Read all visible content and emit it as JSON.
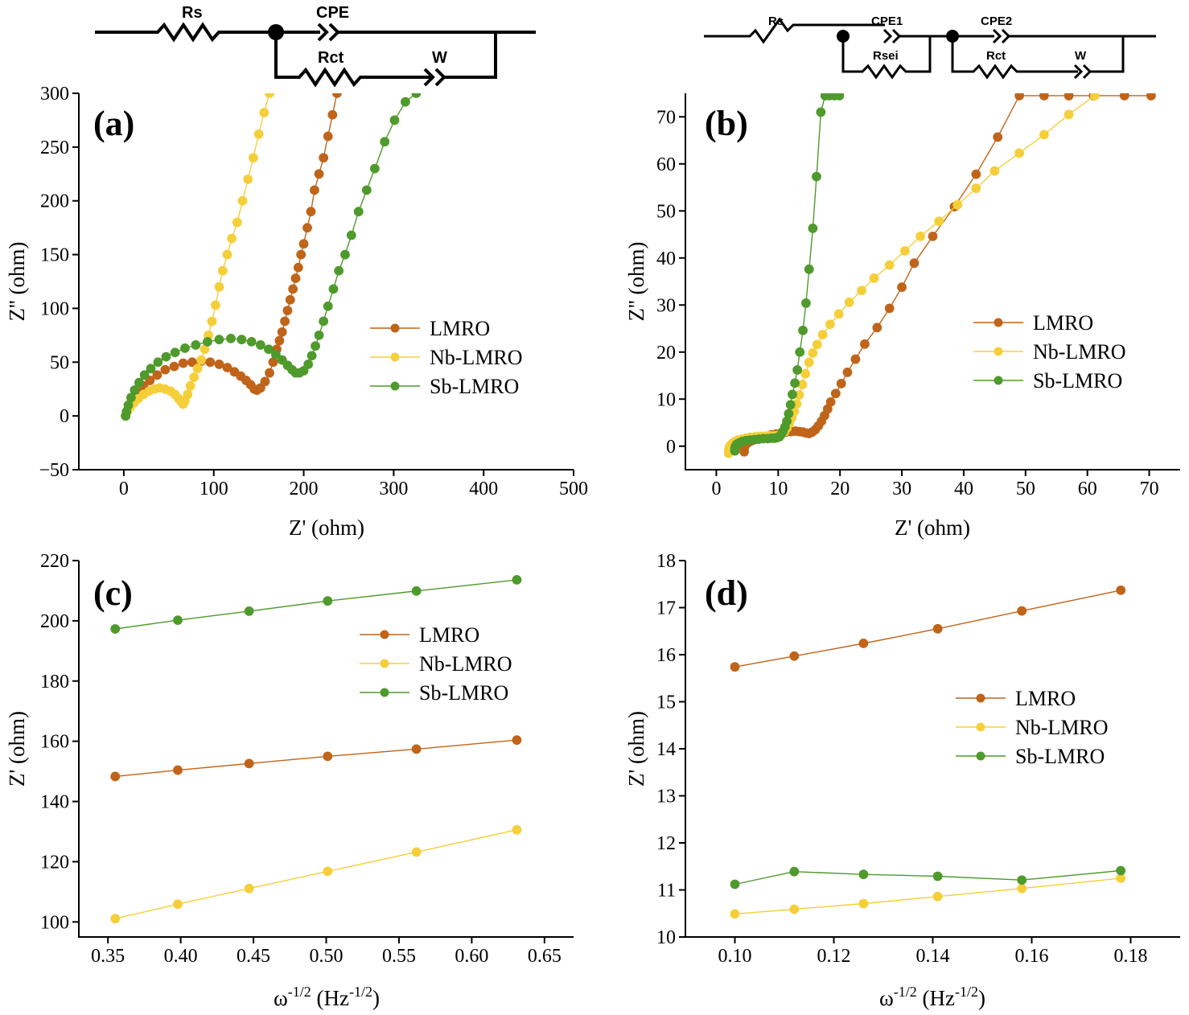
{
  "colors": {
    "LMRO": "#c0641a",
    "Nb-LMRO": "#f5cf3a",
    "Sb-LMRO": "#4f9a2c"
  },
  "circuits": {
    "a": {
      "rs": "Rs",
      "cpe": "CPE",
      "rct": "Rct",
      "w": "W"
    },
    "b": {
      "rs": "Rs",
      "cpe1": "CPE1",
      "rsei": "Rsei",
      "cpe2": "CPE2",
      "rct": "Rct",
      "w": "W"
    }
  },
  "chart_data": [
    {
      "id": "a",
      "panel_label": "(a)",
      "type": "scatter",
      "xlabel": "Z' (ohm)",
      "ylabel": "Z'' (ohm)",
      "xlim": [
        -50,
        500
      ],
      "ylim": [
        -50,
        300
      ],
      "xticks": [
        0,
        100,
        200,
        300,
        400,
        500
      ],
      "yticks": [
        -50,
        0,
        50,
        100,
        150,
        200,
        250,
        300
      ],
      "legend": [
        "LMRO",
        "Nb-LMRO",
        "Sb-LMRO"
      ],
      "legend_position": "right",
      "series": [
        {
          "name": "LMRO",
          "x": [
            2,
            4,
            7,
            11,
            16,
            22,
            29,
            37,
            46,
            56,
            66,
            76,
            86,
            96,
            106,
            115,
            123,
            130,
            136,
            141,
            145,
            148,
            152,
            157,
            162,
            166,
            170,
            173,
            176,
            179,
            182,
            185,
            188,
            191,
            194,
            197,
            200,
            204,
            208,
            212,
            217,
            222,
            227,
            232,
            237
          ],
          "y": [
            0,
            5,
            10,
            16,
            22,
            28,
            33,
            38,
            43,
            46,
            49,
            50,
            51,
            50,
            48,
            45,
            41,
            37,
            33,
            29,
            25,
            24,
            26,
            32,
            40,
            50,
            62,
            70,
            78,
            88,
            98,
            108,
            118,
            128,
            138,
            150,
            160,
            175,
            190,
            210,
            225,
            240,
            260,
            280,
            300
          ]
        },
        {
          "name": "Nb-LMRO",
          "x": [
            2,
            4,
            7,
            11,
            16,
            22,
            28,
            34,
            40,
            46,
            52,
            57,
            61,
            64,
            66,
            68,
            71,
            74,
            78,
            82,
            86,
            90,
            94,
            98,
            102,
            106,
            110,
            115,
            120,
            126,
            132,
            138,
            144,
            150,
            156,
            162
          ],
          "y": [
            0,
            4,
            8,
            12,
            16,
            20,
            23,
            25,
            26,
            25,
            23,
            20,
            16,
            13,
            11,
            14,
            20,
            28,
            36,
            44,
            52,
            62,
            75,
            88,
            103,
            120,
            135,
            150,
            165,
            180,
            200,
            220,
            240,
            262,
            282,
            300
          ]
        },
        {
          "name": "Sb-LMRO",
          "x": [
            2,
            3,
            5,
            8,
            12,
            17,
            23,
            30,
            38,
            47,
            57,
            68,
            80,
            93,
            106,
            119,
            131,
            142,
            152,
            161,
            169,
            176,
            182,
            187,
            191,
            195,
            200,
            205,
            209,
            213,
            217,
            222,
            227,
            233,
            239,
            246,
            253,
            261,
            270,
            279,
            290,
            301,
            313,
            325
          ],
          "y": [
            0,
            4,
            10,
            17,
            24,
            31,
            38,
            44,
            50,
            55,
            59,
            63,
            66,
            69,
            71,
            72,
            71,
            69,
            66,
            62,
            57,
            52,
            47,
            43,
            40,
            40,
            42,
            48,
            56,
            65,
            75,
            88,
            102,
            118,
            135,
            150,
            168,
            190,
            210,
            230,
            255,
            275,
            292,
            300
          ]
        }
      ]
    },
    {
      "id": "b",
      "panel_label": "(b)",
      "type": "scatter",
      "xlabel": "Z' (ohm)",
      "ylabel": "Z'' (ohm)",
      "xlim": [
        -5,
        75
      ],
      "ylim": [
        -5,
        75
      ],
      "xticks": [
        0,
        10,
        20,
        30,
        40,
        50,
        60,
        70
      ],
      "yticks": [
        0,
        10,
        20,
        30,
        40,
        50,
        60,
        70
      ],
      "legend": [
        "LMRO",
        "Nb-LMRO",
        "Sb-LMRO"
      ],
      "legend_position": "right",
      "series": [
        {
          "name": "LMRO",
          "x": [
            4.5,
            4.5,
            4.6,
            4.8,
            5.2,
            5.8,
            6.5,
            7.3,
            8.1,
            8.9,
            9.7,
            10.5,
            11.3,
            12.1,
            12.8,
            13.4,
            14,
            14.5,
            15,
            15.5,
            16,
            16.5,
            17,
            17.5,
            18,
            18.5,
            19.3,
            20.2,
            21.2,
            22.5,
            24,
            26,
            28,
            30,
            32,
            35,
            38.5,
            42,
            45.5,
            49,
            53,
            57,
            61,
            66,
            70.3
          ],
          "y": [
            -1.2,
            -0.6,
            0,
            0.4,
            0.8,
            1.2,
            1.5,
            1.8,
            2.1,
            2.4,
            2.6,
            2.8,
            3,
            3.1,
            3.2,
            3.1,
            3,
            2.8,
            2.7,
            3,
            3.5,
            4.3,
            5.3,
            6.5,
            7.9,
            9.4,
            11.2,
            13.3,
            15.7,
            18.5,
            21.7,
            25.2,
            29.3,
            33.8,
            38.9,
            44.6,
            50.9,
            57.8,
            65.7,
            74.5,
            74.5,
            74.5,
            74.5,
            74.5,
            74.5
          ]
        },
        {
          "name": "Nb-LMRO",
          "x": [
            2,
            2,
            2.1,
            2.3,
            2.6,
            3,
            3.5,
            4.1,
            4.8,
            5.5,
            6.3,
            7.1,
            7.9,
            8.7,
            9.4,
            10,
            10.5,
            11,
            11.4,
            11.8,
            12.2,
            12.6,
            13,
            13.4,
            13.9,
            14.4,
            15,
            15.6,
            16.3,
            17.2,
            18.4,
            19.8,
            21.5,
            23.5,
            25.5,
            28,
            30.5,
            33,
            36,
            39,
            42,
            45,
            49,
            53,
            57,
            61.2
          ],
          "y": [
            -1.5,
            -0.9,
            -0.3,
            0.2,
            0.6,
            1,
            1.3,
            1.5,
            1.7,
            1.9,
            2,
            2.1,
            2.1,
            2.2,
            2.2,
            2.3,
            2.5,
            3,
            3.8,
            4.8,
            6,
            7.4,
            9,
            10.9,
            13.1,
            15.4,
            17.8,
            19.8,
            21.6,
            23.7,
            25.9,
            28.1,
            30.6,
            33.1,
            35.7,
            38.5,
            41.5,
            44.6,
            47.8,
            51.3,
            54.8,
            58.5,
            62.3,
            66.2,
            70.5,
            74.5
          ]
        },
        {
          "name": "Sb-LMRO",
          "x": [
            3,
            3,
            3.1,
            3.3,
            3.7,
            4.2,
            4.8,
            5.5,
            6.2,
            6.9,
            7.6,
            8.3,
            8.9,
            9.4,
            9.8,
            10.2,
            10.5,
            10.8,
            11.1,
            11.4,
            11.7,
            12,
            12.3,
            12.7,
            13.1,
            13.5,
            14,
            14.5,
            15,
            15.6,
            16.2,
            16.9,
            17.6,
            18.3,
            19.1,
            19.9
          ],
          "y": [
            -1,
            -0.5,
            0,
            0.4,
            0.7,
            1,
            1.2,
            1.3,
            1.4,
            1.5,
            1.6,
            1.6,
            1.7,
            1.7,
            1.8,
            2,
            2.5,
            3.2,
            4.1,
            5.3,
            6.9,
            8.8,
            11,
            13.4,
            16.2,
            20,
            24.6,
            30.4,
            37.6,
            46.3,
            57.3,
            71,
            74.5,
            74.5,
            74.5,
            74.5
          ]
        }
      ]
    },
    {
      "id": "c",
      "panel_label": "(c)",
      "type": "line",
      "xlabel": "ω-1/2 (Hz-1/2)",
      "ylabel": "Z' (ohm)",
      "xlim": [
        0.33,
        0.67
      ],
      "ylim": [
        95,
        220
      ],
      "xticks": [
        0.35,
        0.4,
        0.45,
        0.5,
        0.55,
        0.6,
        0.65
      ],
      "yticks": [
        100,
        120,
        140,
        160,
        180,
        200,
        220
      ],
      "legend": [
        "LMRO",
        "Nb-LMRO",
        "Sb-LMRO"
      ],
      "legend_position": "right",
      "x": [
        0.355,
        0.398,
        0.447,
        0.501,
        0.562,
        0.631
      ],
      "series": [
        {
          "name": "LMRO",
          "values": [
            148.3,
            150.4,
            152.6,
            155.0,
            157.4,
            160.4
          ]
        },
        {
          "name": "Nb-LMRO",
          "values": [
            101.1,
            105.9,
            111.1,
            116.8,
            123.2,
            130.6
          ]
        },
        {
          "name": "Sb-LMRO",
          "values": [
            197.3,
            200.2,
            203.2,
            206.6,
            209.9,
            213.6
          ]
        }
      ]
    },
    {
      "id": "d",
      "panel_label": "(d)",
      "type": "line",
      "xlabel": "ω-1/2 (Hz-1/2)",
      "ylabel": "Z' (ohm)",
      "xlim": [
        0.09,
        0.19
      ],
      "ylim": [
        10,
        18
      ],
      "xticks": [
        0.1,
        0.12,
        0.14,
        0.16,
        0.18
      ],
      "yticks": [
        10,
        11,
        12,
        13,
        14,
        15,
        16,
        17,
        18
      ],
      "legend": [
        "LMRO",
        "Nb-LMRO",
        "Sb-LMRO"
      ],
      "legend_position": "right",
      "x": [
        0.1,
        0.112,
        0.126,
        0.141,
        0.158,
        0.178
      ],
      "series": [
        {
          "name": "LMRO",
          "values": [
            15.74,
            15.97,
            16.24,
            16.55,
            16.93,
            17.37
          ]
        },
        {
          "name": "Nb-LMRO",
          "values": [
            10.49,
            10.59,
            10.71,
            10.86,
            11.03,
            11.25
          ]
        },
        {
          "name": "Sb-LMRO",
          "values": [
            11.12,
            11.39,
            11.33,
            11.29,
            11.21,
            11.41
          ]
        }
      ]
    }
  ]
}
